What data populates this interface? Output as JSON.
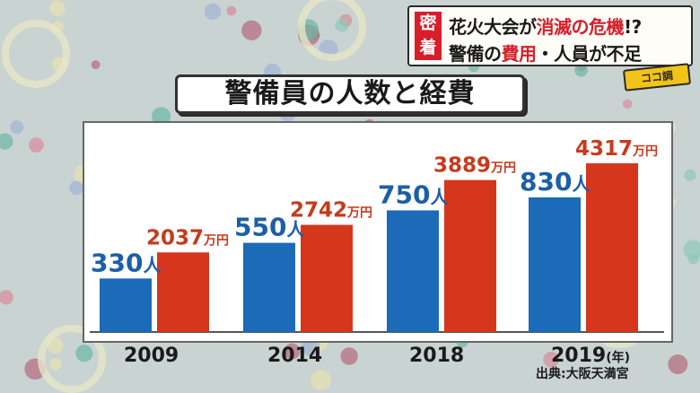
{
  "banner": {
    "badge": [
      "密",
      "着"
    ],
    "line1_a": "花火大会が",
    "line1_b": "消滅の危機",
    "line1_c": "!?",
    "line2_a": "警備の",
    "line2_b": "費用",
    "line2_c": "・人員が不足",
    "tag": "ココ調"
  },
  "colors": {
    "people": "#1b6bb8",
    "cost": "#d6361c",
    "people_label": "#1b5fa8",
    "cost_label": "#c73a1c"
  },
  "chart_data": {
    "type": "bar",
    "title": "警備員の人数と経費",
    "categories": [
      "2009",
      "2014",
      "2018",
      "2019"
    ],
    "x_unit": "(年)",
    "series": [
      {
        "values": [
          330,
          550,
          750,
          830
        ],
        "labels": [
          "330",
          "550",
          "750",
          "830"
        ],
        "unit": "人"
      },
      {
        "values": [
          2037,
          2742,
          3889,
          4317
        ],
        "labels": [
          "2037",
          "2742",
          "3889",
          "4317"
        ],
        "unit": "万円"
      }
    ],
    "source": "出典:大阪天満宮",
    "grid": false
  }
}
